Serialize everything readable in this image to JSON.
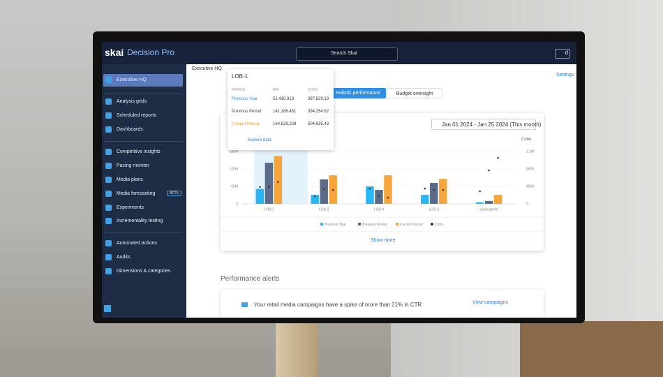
{
  "header": {
    "logo": "skai",
    "product": "Decision Pro",
    "search": "Search Skai",
    "user": "d"
  },
  "sidebar": {
    "items": [
      "Executive HQ",
      "Analysis grids",
      "Scheduled reports",
      "Dashboards",
      "Competitive insights",
      "Pacing monitor",
      "Media plans",
      "Media forecasting",
      "Experiments",
      "Incrementality testing",
      "Automated actions",
      "Audits",
      "Dimensions & categories"
    ],
    "beta": "BETA"
  },
  "breadcrumb": "Executive HQ",
  "settings": "Settings",
  "tabs": [
    "Holistic performance",
    "Budget oversight"
  ],
  "date_range": "Jan 01 2024 - Jan 25 2024 (This month)",
  "metric_select": "Conv.",
  "tooltip": {
    "title": "LOB-1",
    "columns": [
      "PERIOD",
      "IMP",
      "CONV."
    ],
    "rows": [
      [
        "Previous Year",
        "51,416,919",
        "387,829.19"
      ],
      [
        "Previous Period",
        "141,186,451",
        "394,254.62"
      ],
      [
        "Current Period",
        "164,629,229",
        "504,635.43"
      ]
    ],
    "link": "Explore data"
  },
  "chart_data": {
    "type": "bar",
    "categories": [
      "LOB-1",
      "LOB-2",
      "LOB-4",
      "LOB-3",
      "Unassigned"
    ],
    "series": [
      {
        "name": "Previous Year",
        "color": "#29b6f6",
        "values": [
          51416919,
          31000000,
          60000000,
          31000000,
          5000000
        ],
        "conv": [
          387829.19,
          176000,
          352000,
          352000,
          288000
        ]
      },
      {
        "name": "Previous Period",
        "color": "#5b6b8a",
        "values": [
          141186451,
          84000000,
          48000000,
          72000000,
          10000000
        ],
        "conv": [
          394254.62,
          336000,
          176000,
          320000,
          768000
        ]
      },
      {
        "name": "Current Period",
        "color": "#f7a53b",
        "values": [
          164629229,
          98000000,
          98000000,
          86000000,
          31000000
        ],
        "conv": [
          504635.43,
          320000,
          144000,
          320000,
          1056000
        ]
      }
    ],
    "conv_legend": "Conv.",
    "conv_color": "#333333",
    "ylim": [
      0,
      180000000
    ],
    "yticks": [
      0,
      {
        "value": 60000000,
        "label": "60M"
      },
      {
        "value": 120000000,
        "label": "120M"
      },
      {
        "value": 180000000,
        "label": "180M"
      }
    ],
    "y2lim": [
      0,
      1200000
    ],
    "y2ticks": [
      0,
      {
        "value": 400000,
        "label": "400K"
      },
      {
        "value": 800000,
        "label": "800K"
      },
      {
        "value": 1200000,
        "label": "1.2M"
      }
    ],
    "grid": true
  },
  "show_more": "Show more",
  "alerts": {
    "title": "Performance alerts",
    "items": [
      {
        "text": "Your retail media campaigns have a spike of more than 21% in CTR",
        "action": "View campaigns"
      }
    ]
  }
}
